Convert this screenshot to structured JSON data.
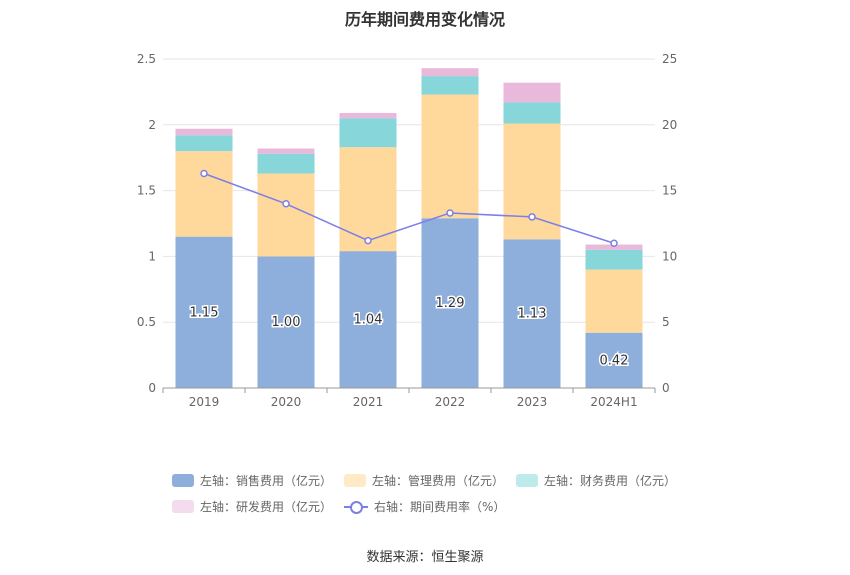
{
  "chart_data": {
    "type": "bar",
    "stacked": true,
    "title": "历年期间费用变化情况",
    "categories": [
      "2019",
      "2020",
      "2021",
      "2022",
      "2023",
      "2024H1"
    ],
    "series": [
      {
        "name": "左轴：销售费用（亿元）",
        "axis": "left",
        "color": "#8eaedb",
        "values": [
          1.15,
          1.0,
          1.04,
          1.29,
          1.13,
          0.42
        ],
        "labels": [
          "1.15",
          "1.00",
          "1.04",
          "1.29",
          "1.13",
          "0.42"
        ]
      },
      {
        "name": "左轴：管理费用（亿元）",
        "axis": "left",
        "color": "#ffd99c",
        "values": [
          0.65,
          0.63,
          0.79,
          0.94,
          0.88,
          0.48
        ]
      },
      {
        "name": "左轴：财务费用（亿元）",
        "axis": "left",
        "color": "#86d6da",
        "values": [
          0.12,
          0.15,
          0.22,
          0.14,
          0.16,
          0.15
        ]
      },
      {
        "name": "左轴：研发费用（亿元）",
        "axis": "left",
        "color": "#e8b9db",
        "values": [
          0.05,
          0.04,
          0.04,
          0.06,
          0.15,
          0.04
        ]
      }
    ],
    "line_series": {
      "name": "右轴：期间费用率（%）",
      "axis": "right",
      "color": "#7b7fe6",
      "values": [
        16.3,
        14.0,
        11.2,
        13.3,
        13.0,
        11.0
      ]
    },
    "left_axis": {
      "min": 0,
      "max": 2.5,
      "ticks": [
        "0",
        "0.5",
        "1",
        "1.5",
        "2",
        "2.5"
      ]
    },
    "right_axis": {
      "min": 0,
      "max": 25,
      "ticks": [
        "0",
        "5",
        "10",
        "15",
        "20",
        "25"
      ]
    },
    "legend_position": "bottom",
    "grid": true
  },
  "source_text": "数据来源：恒生聚源"
}
